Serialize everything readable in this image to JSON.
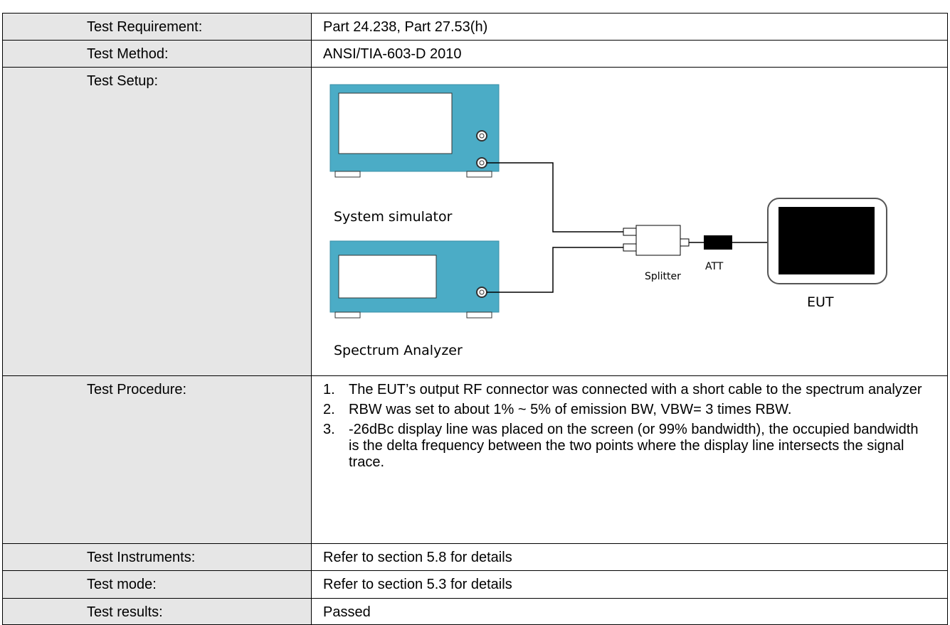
{
  "table": {
    "rows": [
      {
        "label": "Test Requirement:",
        "value": "Part 24.238, Part 27.53(h)"
      },
      {
        "label": "Test Method:",
        "value": "ANSI/TIA-603-D 2010"
      },
      {
        "label": "Test Setup:",
        "diagram": {
          "system_simulator": "System simulator",
          "spectrum_analyzer": "Spectrum Analyzer",
          "splitter": "Splitter",
          "att": "ATT",
          "eut": "EUT"
        }
      },
      {
        "label": "Test Procedure:",
        "steps": [
          {
            "marker": "1.",
            "text": "The EUT’s output RF connector was connected with a short cable to the spectrum analyzer"
          },
          {
            "marker": "2.",
            "text": "RBW was set to about 1% ~ 5% of emission BW, VBW= 3 times RBW."
          },
          {
            "marker": "3.",
            "text": "-26dBc display line was placed on the screen (or 99% bandwidth), the occupied bandwidth is the delta frequency between the two points where the display line intersects the signal trace."
          }
        ]
      },
      {
        "label": "Test Instruments:",
        "value": "Refer to section 5.8 for details"
      },
      {
        "label": "Test mode:",
        "value": "Refer to section 5.3 for details"
      },
      {
        "label": "Test results:",
        "value": "Passed"
      }
    ]
  }
}
